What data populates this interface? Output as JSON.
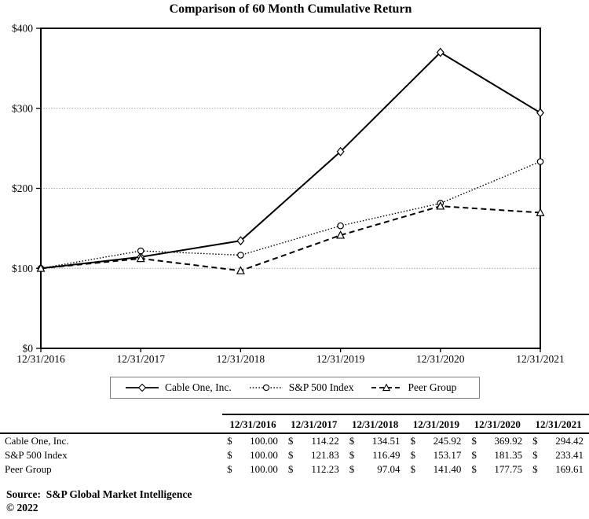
{
  "title": "Comparison of 60 Month Cumulative Return",
  "chart_data": {
    "type": "line",
    "title": "Comparison of 60 Month Cumulative Return",
    "x_labels": [
      "12/31/2016",
      "12/31/2017",
      "12/31/2018",
      "12/31/2019",
      "12/31/2020",
      "12/31/2021"
    ],
    "series": [
      {
        "name": "Cable One, Inc.",
        "values": [
          100.0,
          114.22,
          134.51,
          245.92,
          369.92,
          294.42
        ],
        "line_style": "solid",
        "marker": "diamond",
        "color": "#000000"
      },
      {
        "name": "S&P 500 Index",
        "values": [
          100.0,
          121.83,
          116.49,
          153.17,
          181.35,
          233.41
        ],
        "line_style": "dotted",
        "marker": "circle",
        "color": "#000000"
      },
      {
        "name": "Peer Group",
        "values": [
          100.0,
          112.23,
          97.04,
          141.4,
          177.75,
          169.61
        ],
        "line_style": "dashed",
        "marker": "triangle",
        "color": "#000000"
      }
    ],
    "ylim": [
      0,
      400
    ],
    "yticks": [
      0,
      100,
      200,
      300,
      400
    ],
    "ytick_labels": [
      "$0",
      "$100",
      "$200",
      "$300",
      "$400"
    ],
    "grid": true,
    "gridline_color": "#a6a6a6",
    "legend_position": "bottom"
  },
  "table": {
    "header": [
      "12/31/2016",
      "12/31/2017",
      "12/31/2018",
      "12/31/2019",
      "12/31/2020",
      "12/31/2021"
    ],
    "currency": "$",
    "rows": [
      {
        "label": "Cable One, Inc.",
        "values": [
          "100.00",
          "114.22",
          "134.51",
          "245.92",
          "369.92",
          "294.42"
        ]
      },
      {
        "label": "S&P 500 Index",
        "values": [
          "100.00",
          "121.83",
          "116.49",
          "153.17",
          "181.35",
          "233.41"
        ]
      },
      {
        "label": "Peer Group",
        "values": [
          "100.00",
          "112.23",
          "97.04",
          "141.40",
          "177.75",
          "169.61"
        ]
      }
    ]
  },
  "footer": {
    "source": "Source:  S&P Global Market Intelligence",
    "copyright": "© 2022"
  }
}
